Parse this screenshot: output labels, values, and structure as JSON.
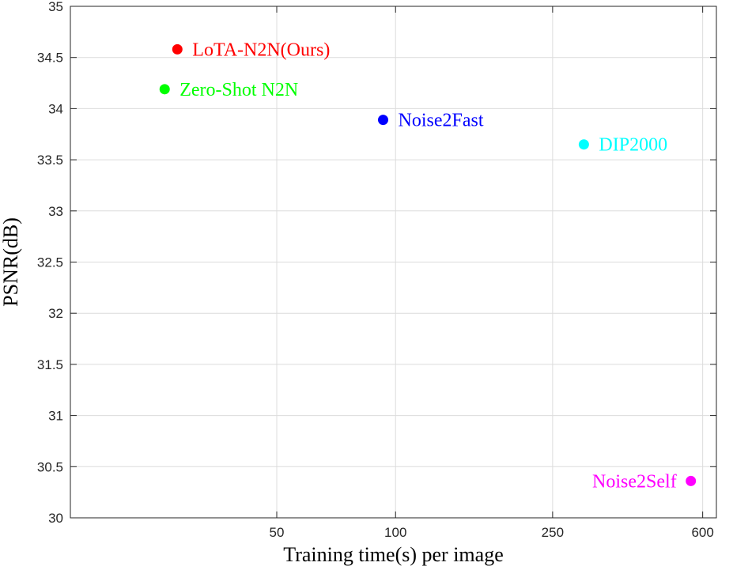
{
  "chart_data": {
    "type": "scatter",
    "title": "",
    "xlabel": "Training time(s) per image",
    "ylabel": "PSNR(dB)",
    "xscale": "log",
    "xlim": [
      15,
      650
    ],
    "ylim": [
      30,
      35
    ],
    "xticks": [
      50,
      100,
      250,
      600
    ],
    "yticks": [
      30,
      30.5,
      31,
      31.5,
      32,
      32.5,
      33,
      33.5,
      34,
      34.5,
      35
    ],
    "ytick_labels": [
      "30",
      "30.5",
      "31",
      "31.5",
      "32",
      "32.5",
      "33",
      "33.5",
      "34",
      "34.5",
      "35"
    ],
    "grid": true,
    "points": [
      {
        "label": "LoTA-N2N(Ours)",
        "x": 28,
        "y": 34.58,
        "color": "#ff0000",
        "label_side": "right"
      },
      {
        "label": "Zero-Shot N2N",
        "x": 26,
        "y": 34.19,
        "color": "#00ff00",
        "label_side": "right"
      },
      {
        "label": "Noise2Fast",
        "x": 93,
        "y": 33.89,
        "color": "#0000ff",
        "label_side": "right"
      },
      {
        "label": "DIP2000",
        "x": 300,
        "y": 33.65,
        "color": "#00ffff",
        "label_side": "right"
      },
      {
        "label": "Noise2Self",
        "x": 560,
        "y": 30.36,
        "color": "#ff00ff",
        "label_side": "left"
      }
    ]
  }
}
